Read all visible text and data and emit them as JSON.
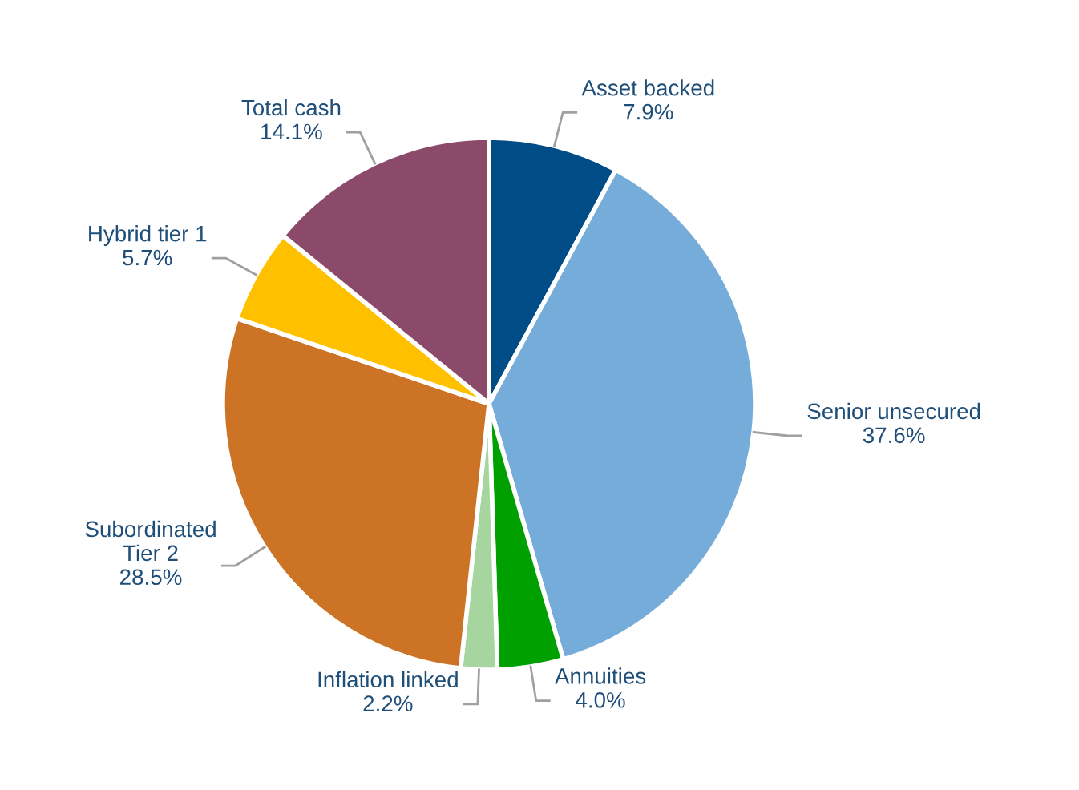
{
  "chart_data": {
    "type": "pie",
    "categories": [
      "Asset backed",
      "Senior unsecured",
      "Annuities",
      "Inflation linked",
      "Subordinated\nTier 2",
      "Hybrid tier 1",
      "Total cash"
    ],
    "values": [
      7.9,
      37.6,
      4.0,
      2.2,
      28.5,
      5.7,
      14.1
    ],
    "value_labels": [
      "7.9%",
      "37.6%",
      "4.0%",
      "2.2%",
      "28.5%",
      "5.7%",
      "14.1%"
    ],
    "colors": [
      "#004c87",
      "#76acd9",
      "#00a000",
      "#a6d5a0",
      "#cc7326",
      "#ffc000",
      "#8b4a69"
    ],
    "legend": false
  }
}
